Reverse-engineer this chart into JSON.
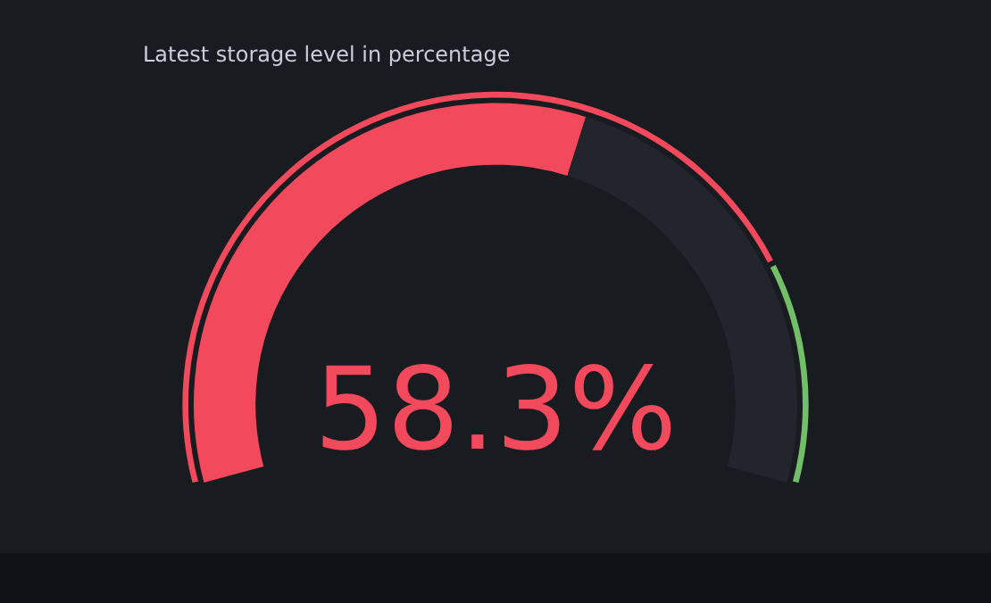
{
  "chart_data": {
    "type": "donut",
    "title": "Latest storage level in percentage",
    "categories": [
      null,
      null
    ],
    "series": [
      {
        "values": [
          58.3,
          41.7
        ],
        "colors": [
          "#f2495c",
          "#22252b"
        ]
      },
      {
        "values": [
          80,
          20
        ],
        "colors": [
          "#f2495c",
          "#73bf69"
        ]
      }
    ],
    "annotations": [
      "58.3%"
    ]
  }
}
